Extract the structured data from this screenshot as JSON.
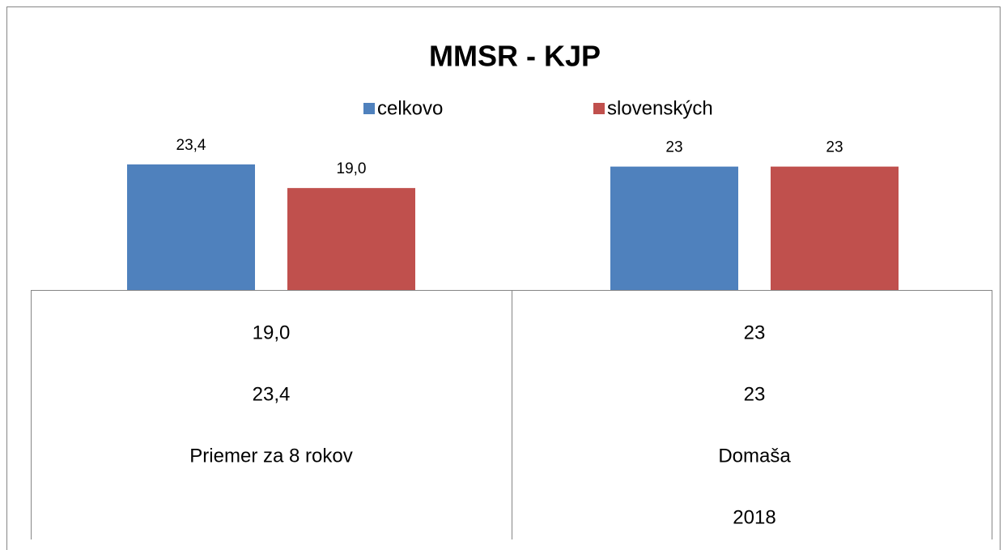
{
  "chart_data": {
    "type": "bar",
    "title": "MMSR - KJP",
    "categories": [
      "Priemer za 8 rokov",
      "Domaša"
    ],
    "subcategories": [
      null,
      "2018"
    ],
    "series": [
      {
        "name": "celkovo",
        "color": "#4f81bd",
        "values": [
          23.4,
          23
        ],
        "value_labels": [
          "23,4",
          "23"
        ]
      },
      {
        "name": "slovenských",
        "color": "#c0504d",
        "values": [
          19.0,
          23
        ],
        "value_labels": [
          "19,0",
          "23"
        ]
      }
    ],
    "legend": "top"
  }
}
